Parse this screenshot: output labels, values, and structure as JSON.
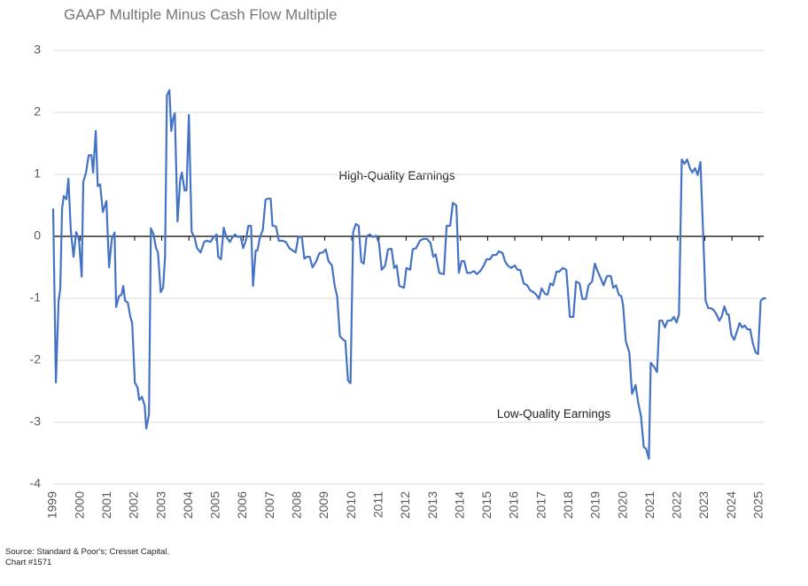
{
  "chart_data": {
    "type": "line",
    "title": "GAAP Multiple Minus Cash Flow Multiple",
    "annotations": [
      "High-Quality Earnings",
      "Low-Quality Earnings"
    ],
    "source": "Source: Standard & Poor's; Cresset Capital.",
    "note": "Chart #1571",
    "color": "#4472c4",
    "grid": true,
    "xlim": [
      1999,
      2025.3
    ],
    "xticks": [
      1999,
      2000,
      2001,
      2002,
      2003,
      2004,
      2005,
      2006,
      2007,
      2008,
      2009,
      2010,
      2011,
      2012,
      2013,
      2014,
      2015,
      2016,
      2017,
      2018,
      2019,
      2020,
      2021,
      2022,
      2023,
      2024,
      2025
    ],
    "ylim": [
      -4,
      3
    ],
    "yticks": [
      -4,
      -3,
      -2,
      -1,
      0,
      1,
      2,
      3
    ],
    "x": [
      1999.0,
      1999.1,
      1999.2,
      1999.26,
      1999.33,
      1999.39,
      1999.49,
      1999.56,
      1999.65,
      1999.75,
      1999.85,
      1999.95,
      2000.05,
      2000.11,
      2000.21,
      2000.31,
      2000.41,
      2000.47,
      2000.57,
      2000.64,
      2000.73,
      2000.83,
      2000.96,
      2001.06,
      2001.16,
      2001.26,
      2001.32,
      2001.42,
      2001.52,
      2001.58,
      2001.65,
      2001.75,
      2001.84,
      2001.91,
      2002.01,
      2002.11,
      2002.17,
      2002.27,
      2002.37,
      2002.43,
      2002.53,
      2002.6,
      2002.7,
      2002.79,
      2002.86,
      2002.96,
      2003.05,
      2003.12,
      2003.19,
      2003.28,
      2003.35,
      2003.41,
      2003.48,
      2003.58,
      2003.68,
      2003.74,
      2003.84,
      2003.91,
      2004.0,
      2004.1,
      2004.2,
      2004.3,
      2004.43,
      2004.56,
      2004.66,
      2004.79,
      2004.92,
      2005.02,
      2005.08,
      2005.18,
      2005.28,
      2005.38,
      2005.51,
      2005.61,
      2005.7,
      2005.8,
      2005.9,
      2006.0,
      2006.1,
      2006.19,
      2006.29,
      2006.36,
      2006.46,
      2006.52,
      2006.62,
      2006.72,
      2006.82,
      2006.91,
      2007.01,
      2007.08,
      2007.21,
      2007.31,
      2007.44,
      2007.57,
      2007.7,
      2007.83,
      2007.93,
      2008.03,
      2008.16,
      2008.25,
      2008.35,
      2008.45,
      2008.55,
      2008.68,
      2008.81,
      2008.94,
      2009.04,
      2009.14,
      2009.27,
      2009.37,
      2009.46,
      2009.56,
      2009.69,
      2009.76,
      2009.86,
      2009.95,
      2010.05,
      2010.15,
      2010.25,
      2010.35,
      2010.44,
      2010.54,
      2010.67,
      2010.77,
      2010.9,
      2011.0,
      2011.1,
      2011.23,
      2011.33,
      2011.46,
      2011.56,
      2011.65,
      2011.75,
      2011.92,
      2012.01,
      2012.15,
      2012.24,
      2012.37,
      2012.51,
      2012.64,
      2012.77,
      2012.9,
      2013.0,
      2013.09,
      2013.22,
      2013.39,
      2013.49,
      2013.62,
      2013.72,
      2013.85,
      2013.94,
      2014.04,
      2014.14,
      2014.24,
      2014.37,
      2014.5,
      2014.6,
      2014.73,
      2014.86,
      2014.96,
      2015.09,
      2015.19,
      2015.32,
      2015.42,
      2015.55,
      2015.64,
      2015.74,
      2015.87,
      2016.0,
      2016.1,
      2016.2,
      2016.33,
      2016.46,
      2016.56,
      2016.69,
      2016.79,
      2016.89,
      2016.99,
      2017.12,
      2017.21,
      2017.31,
      2017.41,
      2017.54,
      2017.64,
      2017.77,
      2017.9,
      2018.03,
      2018.16,
      2018.26,
      2018.39,
      2018.49,
      2018.62,
      2018.72,
      2018.85,
      2018.95,
      2019.05,
      2019.18,
      2019.27,
      2019.4,
      2019.54,
      2019.63,
      2019.73,
      2019.83,
      2019.93,
      2019.99,
      2020.09,
      2020.22,
      2020.32,
      2020.45,
      2020.55,
      2020.65,
      2020.75,
      2020.84,
      2020.94,
      2021.01,
      2021.14,
      2021.24,
      2021.33,
      2021.43,
      2021.53,
      2021.63,
      2021.76,
      2021.86,
      2021.96,
      2022.05,
      2022.15,
      2022.25,
      2022.35,
      2022.45,
      2022.54,
      2022.64,
      2022.74,
      2022.84,
      2022.94,
      2023.03,
      2023.13,
      2023.23,
      2023.33,
      2023.43,
      2023.53,
      2023.62,
      2023.72,
      2023.82,
      2023.88,
      2023.98,
      2024.08,
      2024.18,
      2024.28,
      2024.38,
      2024.47,
      2024.57,
      2024.67,
      2024.77,
      2024.87,
      2024.96,
      2025.06,
      2025.16,
      2025.26
    ],
    "values": [
      0.45,
      -2.36,
      -1.05,
      -0.85,
      0.45,
      0.65,
      0.6,
      0.93,
      0.1,
      -0.33,
      0.07,
      -0.05,
      -0.65,
      0.88,
      1.03,
      1.31,
      1.31,
      1.03,
      1.7,
      0.81,
      0.84,
      0.39,
      0.57,
      -0.5,
      -0.04,
      0.06,
      -1.14,
      -0.97,
      -0.94,
      -0.8,
      -1.04,
      -1.07,
      -1.29,
      -1.4,
      -2.36,
      -2.44,
      -2.64,
      -2.59,
      -2.73,
      -3.1,
      -2.87,
      0.13,
      0.03,
      -0.19,
      -0.26,
      -0.9,
      -0.83,
      -0.33,
      2.27,
      2.36,
      1.7,
      1.89,
      1.99,
      0.24,
      0.91,
      1.03,
      0.74,
      0.74,
      1.96,
      0.07,
      -0.01,
      -0.19,
      -0.26,
      -0.09,
      -0.07,
      -0.09,
      -0.01,
      0.03,
      -0.33,
      -0.37,
      0.14,
      -0.01,
      -0.09,
      -0.01,
      0.03,
      -0.01,
      0,
      -0.19,
      -0.06,
      0.17,
      0.17,
      -0.8,
      -0.23,
      -0.23,
      -0.01,
      0.1,
      0.59,
      0.61,
      0.61,
      0.17,
      0.16,
      -0.07,
      -0.07,
      -0.09,
      -0.19,
      -0.23,
      -0.26,
      -0.01,
      -0.01,
      -0.36,
      -0.33,
      -0.33,
      -0.5,
      -0.41,
      -0.27,
      -0.26,
      -0.21,
      -0.4,
      -0.47,
      -0.8,
      -0.97,
      -1.61,
      -1.67,
      -1.69,
      -2.33,
      -2.37,
      0.07,
      0.2,
      0.17,
      -0.41,
      -0.44,
      0,
      0.03,
      -0.01,
      0.01,
      -0.11,
      -0.54,
      -0.47,
      -0.21,
      -0.2,
      -0.51,
      -0.47,
      -0.8,
      -0.83,
      -0.51,
      -0.54,
      -0.21,
      -0.19,
      -0.07,
      -0.04,
      -0.04,
      -0.11,
      -0.33,
      -0.29,
      -0.59,
      -0.61,
      0.17,
      0.17,
      0.54,
      0.5,
      -0.59,
      -0.4,
      -0.4,
      -0.59,
      -0.59,
      -0.56,
      -0.61,
      -0.56,
      -0.47,
      -0.37,
      -0.37,
      -0.3,
      -0.3,
      -0.24,
      -0.27,
      -0.4,
      -0.47,
      -0.51,
      -0.47,
      -0.54,
      -0.54,
      -0.76,
      -0.79,
      -0.87,
      -0.9,
      -0.94,
      -1.01,
      -0.84,
      -0.93,
      -0.94,
      -0.76,
      -0.79,
      -0.57,
      -0.57,
      -0.51,
      -0.54,
      -1.3,
      -1.3,
      -0.73,
      -0.76,
      -1.01,
      -1.01,
      -0.79,
      -0.73,
      -0.44,
      -0.56,
      -0.69,
      -0.79,
      -0.64,
      -0.64,
      -0.83,
      -0.79,
      -0.94,
      -0.97,
      -1.11,
      -1.69,
      -1.87,
      -2.54,
      -2.4,
      -2.69,
      -2.9,
      -3.4,
      -3.43,
      -3.59,
      -2.04,
      -2.11,
      -2.19,
      -1.36,
      -1.36,
      -1.47,
      -1.36,
      -1.36,
      -1.3,
      -1.39,
      -1.26,
      1.24,
      1.17,
      1.24,
      1.1,
      1.03,
      1.1,
      0.99,
      1.2,
      0.03,
      -1.04,
      -1.16,
      -1.16,
      -1.19,
      -1.26,
      -1.36,
      -1.3,
      -1.13,
      -1.26,
      -1.26,
      -1.59,
      -1.67,
      -1.54,
      -1.4,
      -1.47,
      -1.44,
      -1.5,
      -1.5,
      -1.73,
      -1.87,
      -1.9,
      -1.04,
      -1.0,
      -1.0
    ]
  }
}
